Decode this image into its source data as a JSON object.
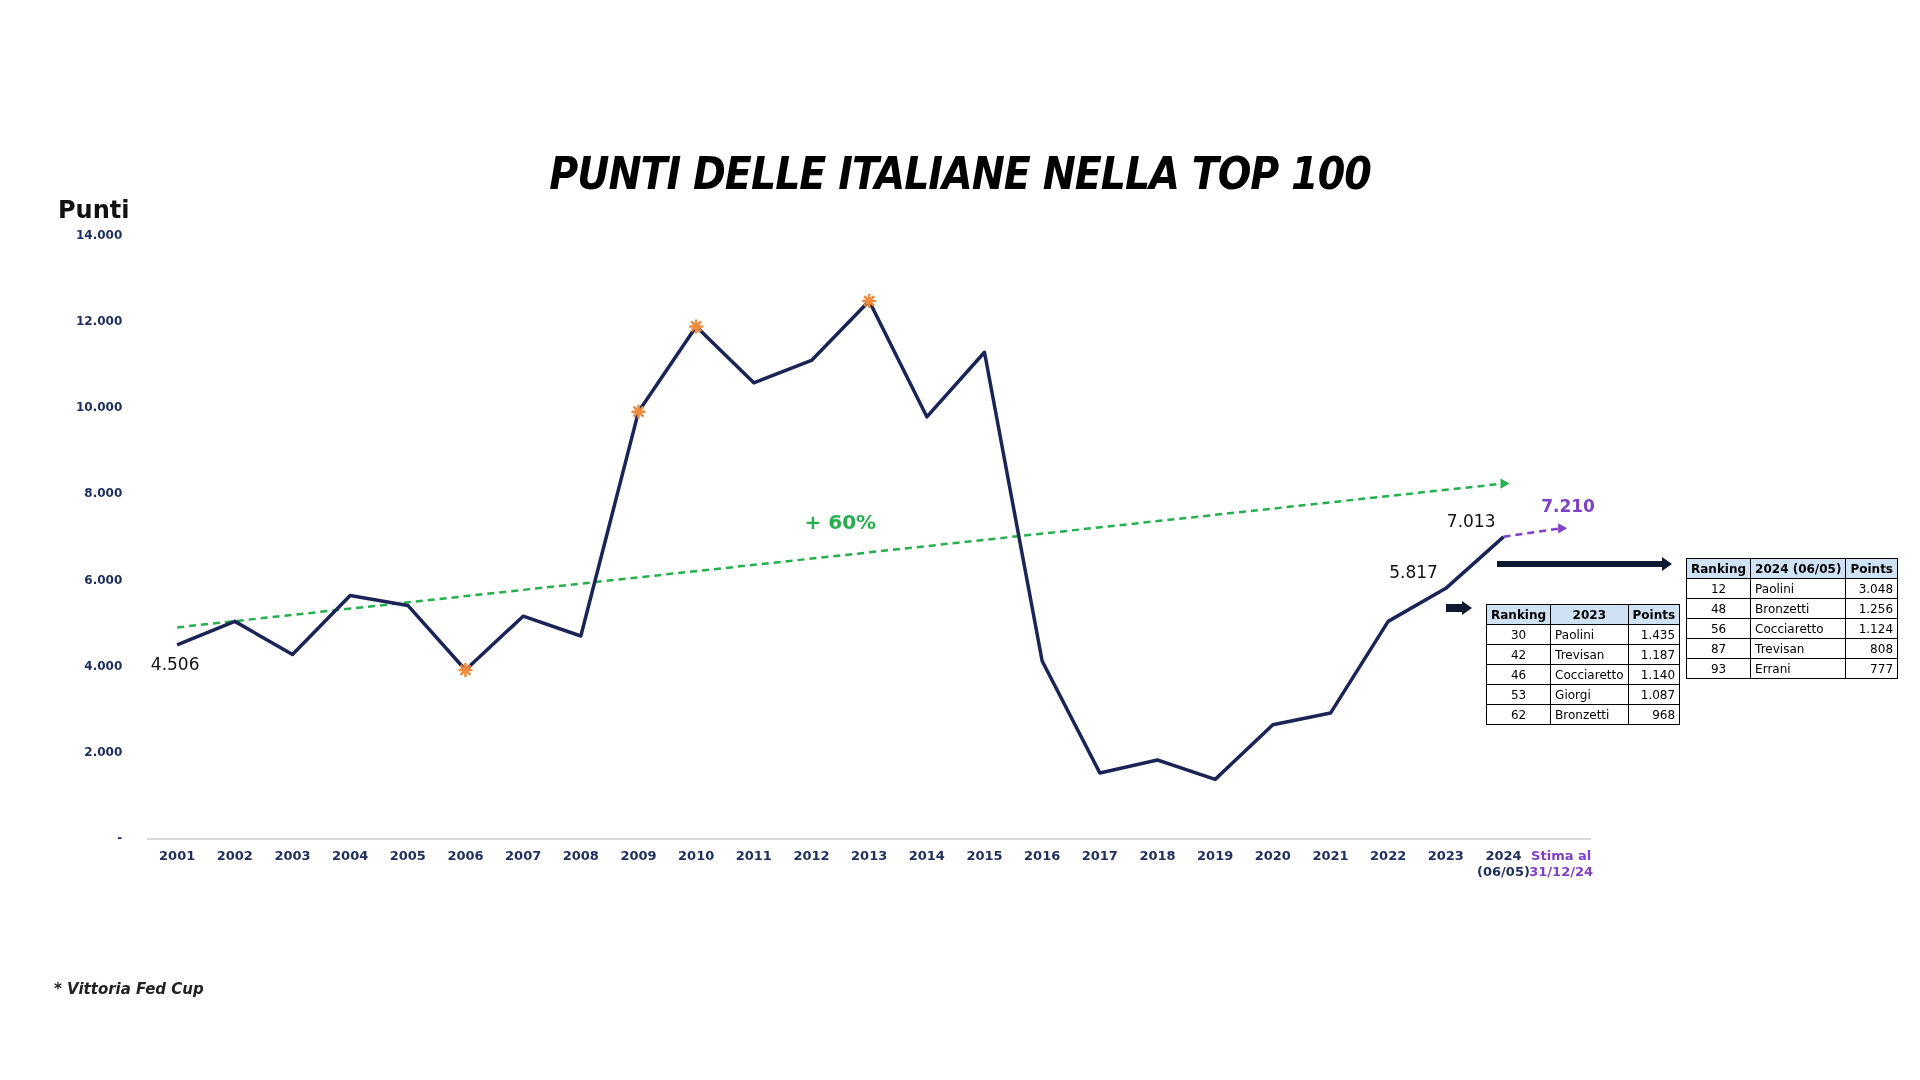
{
  "chart_data": [
    {
      "type": "line",
      "title": "PUNTI DELLE ITALIANE NELLA TOP 100",
      "ylabel": "Punti",
      "categories": [
        "2001",
        "2002",
        "2003",
        "2004",
        "2005",
        "2006",
        "2007",
        "2008",
        "2009",
        "2010",
        "2011",
        "2012",
        "2013",
        "2014",
        "2015",
        "2016",
        "2017",
        "2018",
        "2019",
        "2020",
        "2021",
        "2022",
        "2023",
        "2024\n(06/05)",
        "Stima al\n31/12/24"
      ],
      "series": [
        {
          "color": "#1a2456",
          "line_style": "solid",
          "values": [
            4506,
            5050,
            4280,
            5650,
            5420,
            3920,
            5170,
            4710,
            9920,
            11900,
            10590,
            11110,
            12490,
            9800,
            11300,
            4130,
            1530,
            1830,
            1380,
            2650,
            2920,
            5050,
            5817,
            7013,
            null
          ],
          "value_labels": [
            "4.506",
            null,
            null,
            null,
            null,
            null,
            null,
            null,
            null,
            null,
            null,
            null,
            null,
            null,
            null,
            null,
            null,
            null,
            null,
            null,
            null,
            null,
            "5.817",
            "7.013",
            null
          ]
        },
        {
          "color": "#8040c8",
          "line_style": "dashed",
          "values": [
            null,
            null,
            null,
            null,
            null,
            null,
            null,
            null,
            null,
            null,
            null,
            null,
            null,
            null,
            null,
            null,
            null,
            null,
            null,
            null,
            null,
            null,
            null,
            7013,
            7210
          ],
          "value_labels": [
            null,
            null,
            null,
            null,
            null,
            null,
            null,
            null,
            null,
            null,
            null,
            null,
            null,
            null,
            null,
            null,
            null,
            null,
            null,
            null,
            null,
            null,
            null,
            null,
            "7.210"
          ]
        },
        {
          "color": "#22b14c",
          "line_style": "dashed",
          "values": [
            4910,
            null,
            null,
            null,
            null,
            null,
            null,
            null,
            null,
            null,
            null,
            null,
            null,
            null,
            null,
            null,
            null,
            null,
            null,
            null,
            null,
            null,
            null,
            8250,
            null
          ]
        },
        {
          "type": "scatter",
          "color": "#f08a3c",
          "marker": "cross",
          "values": [
            null,
            null,
            null,
            null,
            null,
            3920,
            null,
            null,
            9920,
            11900,
            null,
            null,
            12490,
            null,
            null,
            null,
            null,
            null,
            null,
            null,
            null,
            null,
            null,
            null,
            null
          ]
        }
      ],
      "ylim": [
        0,
        14000
      ],
      "yticks": [
        {
          "value": 0,
          "label": "-"
        },
        {
          "value": 2000,
          "label": "2.000"
        },
        {
          "value": 4000,
          "label": "4.000"
        },
        {
          "value": 6000,
          "label": "6.000"
        },
        {
          "value": 8000,
          "label": "8.000"
        },
        {
          "value": 10000,
          "label": "10.000"
        },
        {
          "value": 12000,
          "label": "12.000"
        },
        {
          "value": 14000,
          "label": "14.000"
        }
      ],
      "grid": false,
      "legend": false,
      "annotations": [
        "+ 60%",
        "* Vittoria Fed Cup"
      ]
    },
    {
      "type": "other",
      "categories": [
        "Ranking",
        "2023",
        "Points"
      ],
      "cell_labels": [
        [
          "30",
          "Paolini",
          "1.435"
        ],
        [
          "42",
          "Trevisan",
          "1.187"
        ],
        [
          "46",
          "Cocciaretto",
          "1.140"
        ],
        [
          "53",
          "Giorgi",
          "1.087"
        ],
        [
          "62",
          "Bronzetti",
          "968"
        ]
      ]
    },
    {
      "type": "other",
      "categories": [
        "Ranking",
        "2024 (06/05)",
        "Points"
      ],
      "cell_labels": [
        [
          "12",
          "Paolini",
          "3.048"
        ],
        [
          "48",
          "Bronzetti",
          "1.256"
        ],
        [
          "56",
          "Cocciaretto",
          "1.124"
        ],
        [
          "87",
          "Trevisan",
          "808"
        ],
        [
          "93",
          "Errani",
          "777"
        ]
      ]
    }
  ]
}
